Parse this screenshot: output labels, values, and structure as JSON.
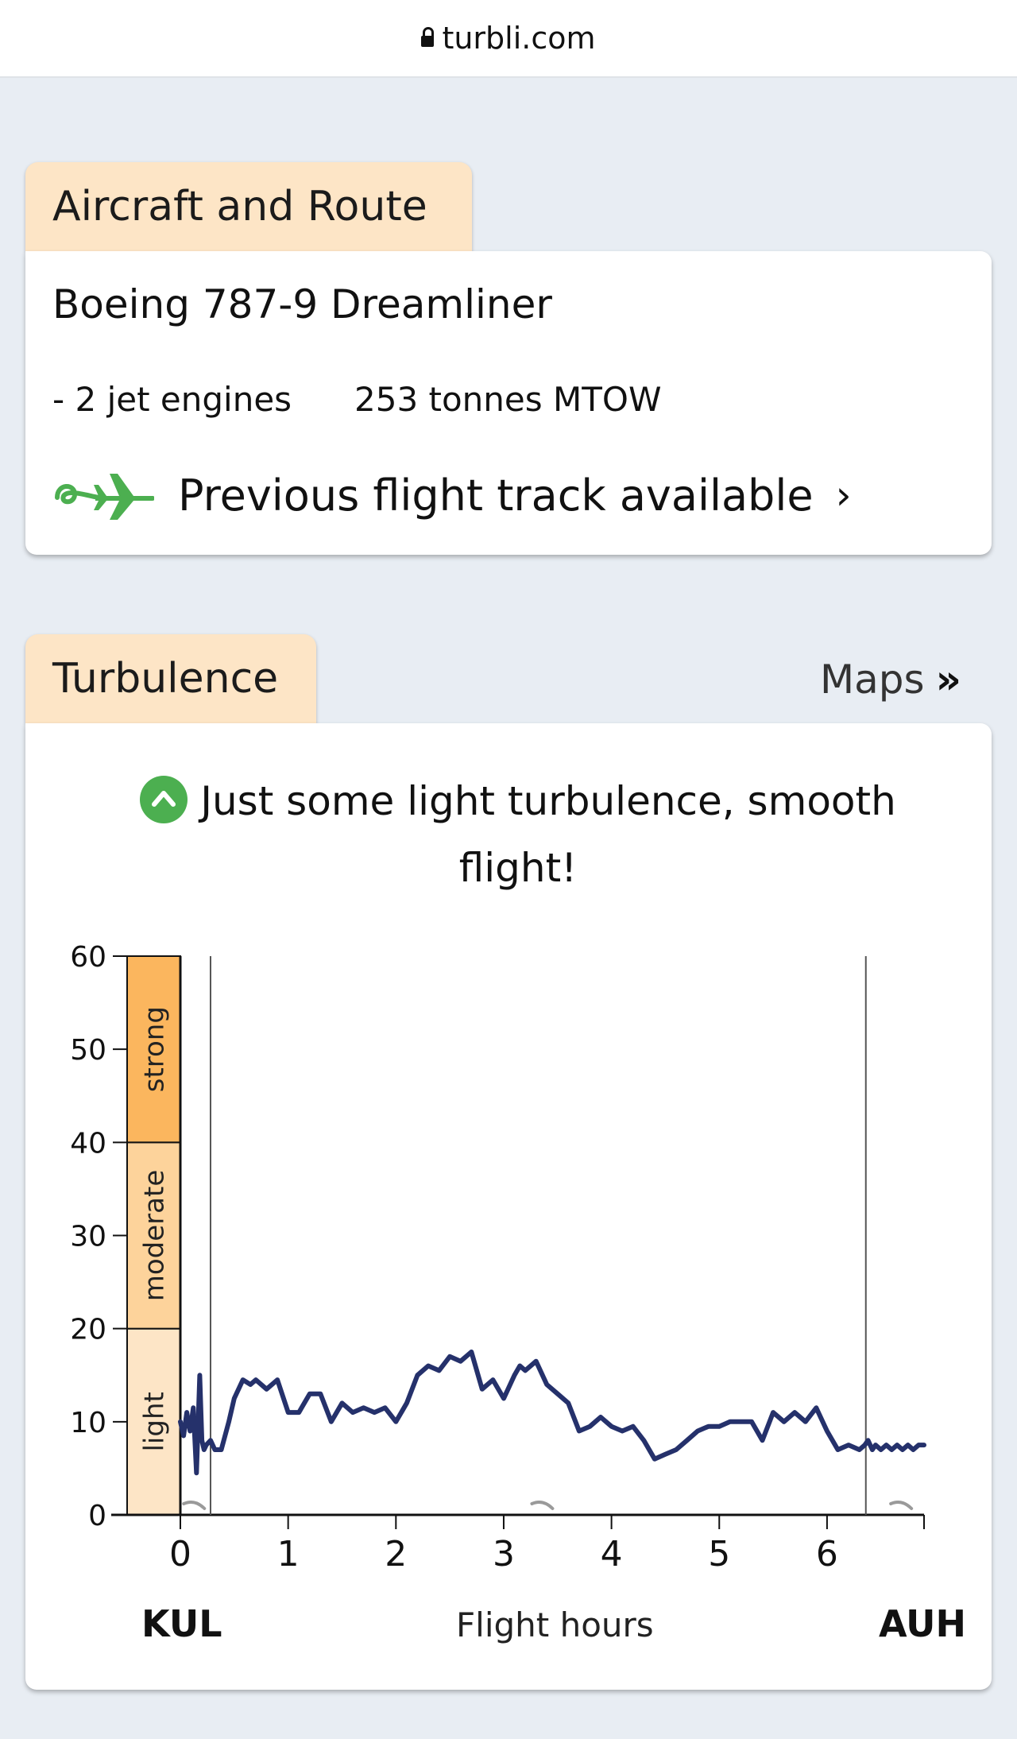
{
  "browser": {
    "url": "turbli.com",
    "lock_icon": "lock-icon"
  },
  "aircraft_section": {
    "tab_label": "Aircraft and Route",
    "aircraft": "Boeing 787-9 Dreamliner",
    "engines": "- 2 jet engines",
    "mtow": "253 tonnes MTOW",
    "track_icon": "flight-track-plane-icon",
    "track_label": "Previous flight track available",
    "track_chevron": "›"
  },
  "turbulence_section": {
    "tab_label": "Turbulence",
    "maps_label": "Maps",
    "maps_arrows": "»",
    "summary": "Just some light turbulence, smooth flight!",
    "summary_icon": "chevron-up-badge-icon",
    "origin": "KUL",
    "destination": "AUH",
    "colors": {
      "light": "#fde5c6",
      "moderate": "#fdd39b",
      "strong": "#fbb65e",
      "line": "#25316b",
      "ok": "#4caf50"
    }
  },
  "chart_data": {
    "type": "line",
    "xlabel": "Flight hours",
    "ylabel": "",
    "xlim": [
      0,
      6.9
    ],
    "ylim": [
      0,
      60
    ],
    "x_ticks": [
      "0",
      "1",
      "2",
      "3",
      "4",
      "5",
      "6"
    ],
    "y_ticks": [
      "0",
      "10",
      "20",
      "30",
      "40",
      "50",
      "60"
    ],
    "bands": [
      {
        "name": "light",
        "from": 0,
        "to": 20
      },
      {
        "name": "moderate",
        "from": 20,
        "to": 40
      },
      {
        "name": "strong",
        "from": 40,
        "to": 60
      }
    ],
    "vertical_markers": [
      0.28,
      6.36
    ],
    "series": [
      {
        "x": [
          0,
          0.03,
          0.06,
          0.09,
          0.12,
          0.15,
          0.18,
          0.2,
          0.22,
          0.24,
          0.28,
          0.32,
          0.38,
          0.45,
          0.5,
          0.58,
          0.65,
          0.7,
          0.8,
          0.9,
          1.0,
          1.1,
          1.2,
          1.3,
          1.4,
          1.5,
          1.6,
          1.7,
          1.8,
          1.9,
          2.0,
          2.1,
          2.2,
          2.3,
          2.4,
          2.5,
          2.6,
          2.7,
          2.8,
          2.9,
          3.0,
          3.1,
          3.15,
          3.2,
          3.3,
          3.4,
          3.5,
          3.6,
          3.7,
          3.8,
          3.85,
          3.9,
          4.0,
          4.1,
          4.2,
          4.3,
          4.4,
          4.5,
          4.6,
          4.7,
          4.8,
          4.9,
          5.0,
          5.1,
          5.2,
          5.3,
          5.4,
          5.5,
          5.6,
          5.7,
          5.8,
          5.9,
          6.0,
          6.1,
          6.2,
          6.3,
          6.35,
          6.38,
          6.42,
          6.45,
          6.5,
          6.55,
          6.6,
          6.65,
          6.7,
          6.75,
          6.8,
          6.85,
          6.9
        ],
        "y": [
          10,
          8.5,
          11,
          9,
          11.5,
          4.5,
          15,
          8,
          7,
          7.5,
          8,
          7,
          7,
          10,
          12.5,
          14.5,
          14,
          14.5,
          13.5,
          14.5,
          11,
          11,
          13,
          13,
          10,
          12,
          11,
          11.5,
          11,
          11.5,
          10,
          12,
          15,
          16,
          15.5,
          17,
          16.5,
          17.5,
          13.5,
          14.5,
          12.5,
          15,
          16,
          15.5,
          16.5,
          14,
          13,
          12,
          9,
          9.5,
          10,
          10.5,
          9.5,
          9,
          9.5,
          8,
          6,
          6.5,
          7,
          8,
          9,
          9.5,
          9.5,
          10,
          10,
          10,
          8,
          11,
          10,
          11,
          10,
          11.5,
          9,
          7,
          7.5,
          7,
          7.5,
          8,
          7,
          7.5,
          7,
          7.5,
          7,
          7.5,
          7,
          7.5,
          7,
          7.5,
          7.5
        ]
      }
    ]
  }
}
